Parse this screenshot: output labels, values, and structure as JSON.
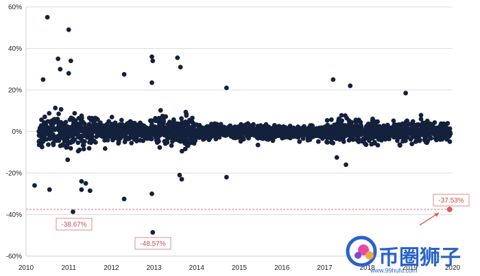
{
  "chart_data": {
    "type": "scatter",
    "title": "",
    "xlabel": "",
    "ylabel": "",
    "xlim": [
      2010,
      2020
    ],
    "ylim": [
      -60,
      60
    ],
    "x_ticks": [
      "2010",
      "2011",
      "2012",
      "2013",
      "2014",
      "2015",
      "2016",
      "2017",
      "2018",
      "2019",
      "2020"
    ],
    "y_ticks": [
      "60%",
      "40%",
      "20%",
      "0%",
      "-20%",
      "-40%",
      "-60%"
    ],
    "grid": "horizontal",
    "point_color": "#14213d",
    "reference_line": {
      "y": -37.53,
      "color": "#e07070",
      "style": "dashed"
    },
    "highlight_point": {
      "x": 2019.93,
      "y": -37.53,
      "color": "#e05a5a"
    },
    "annotations": [
      {
        "text": "-38.67%",
        "x": 2011.1,
        "y": -38.67
      },
      {
        "text": "-48.57%",
        "x": 2012.9,
        "y": -48.57
      },
      {
        "text": "-37.53%",
        "x": 2019.93,
        "y": -37.53
      }
    ],
    "notable_points": [
      {
        "x": 2010.5,
        "y": 55
      },
      {
        "x": 2011.0,
        "y": 49
      },
      {
        "x": 2010.75,
        "y": 35
      },
      {
        "x": 2011.05,
        "y": 34
      },
      {
        "x": 2012.95,
        "y": 36
      },
      {
        "x": 2012.97,
        "y": 34
      },
      {
        "x": 2013.55,
        "y": 35.5
      },
      {
        "x": 2013.62,
        "y": 31
      },
      {
        "x": 2012.3,
        "y": 27.5
      },
      {
        "x": 2010.8,
        "y": 30
      },
      {
        "x": 2011.0,
        "y": 28
      },
      {
        "x": 2010.4,
        "y": 25
      },
      {
        "x": 2012.95,
        "y": 23.5
      },
      {
        "x": 2014.7,
        "y": 21
      },
      {
        "x": 2017.2,
        "y": 25
      },
      {
        "x": 2017.6,
        "y": 22
      },
      {
        "x": 2018.9,
        "y": 18.5
      },
      {
        "x": 2010.2,
        "y": -26
      },
      {
        "x": 2010.55,
        "y": -28
      },
      {
        "x": 2011.3,
        "y": -24
      },
      {
        "x": 2011.4,
        "y": -25
      },
      {
        "x": 2011.5,
        "y": -28.5
      },
      {
        "x": 2011.3,
        "y": -28
      },
      {
        "x": 2012.3,
        "y": -32.5
      },
      {
        "x": 2012.95,
        "y": -30
      },
      {
        "x": 2011.1,
        "y": -38.67
      },
      {
        "x": 2012.97,
        "y": -48.57
      },
      {
        "x": 2013.6,
        "y": -21
      },
      {
        "x": 2013.65,
        "y": -23
      },
      {
        "x": 2014.7,
        "y": -22
      },
      {
        "x": 2017.5,
        "y": -16
      }
    ]
  },
  "watermark": {
    "text": "币圈狮子",
    "url": "www.99hufu.com"
  }
}
